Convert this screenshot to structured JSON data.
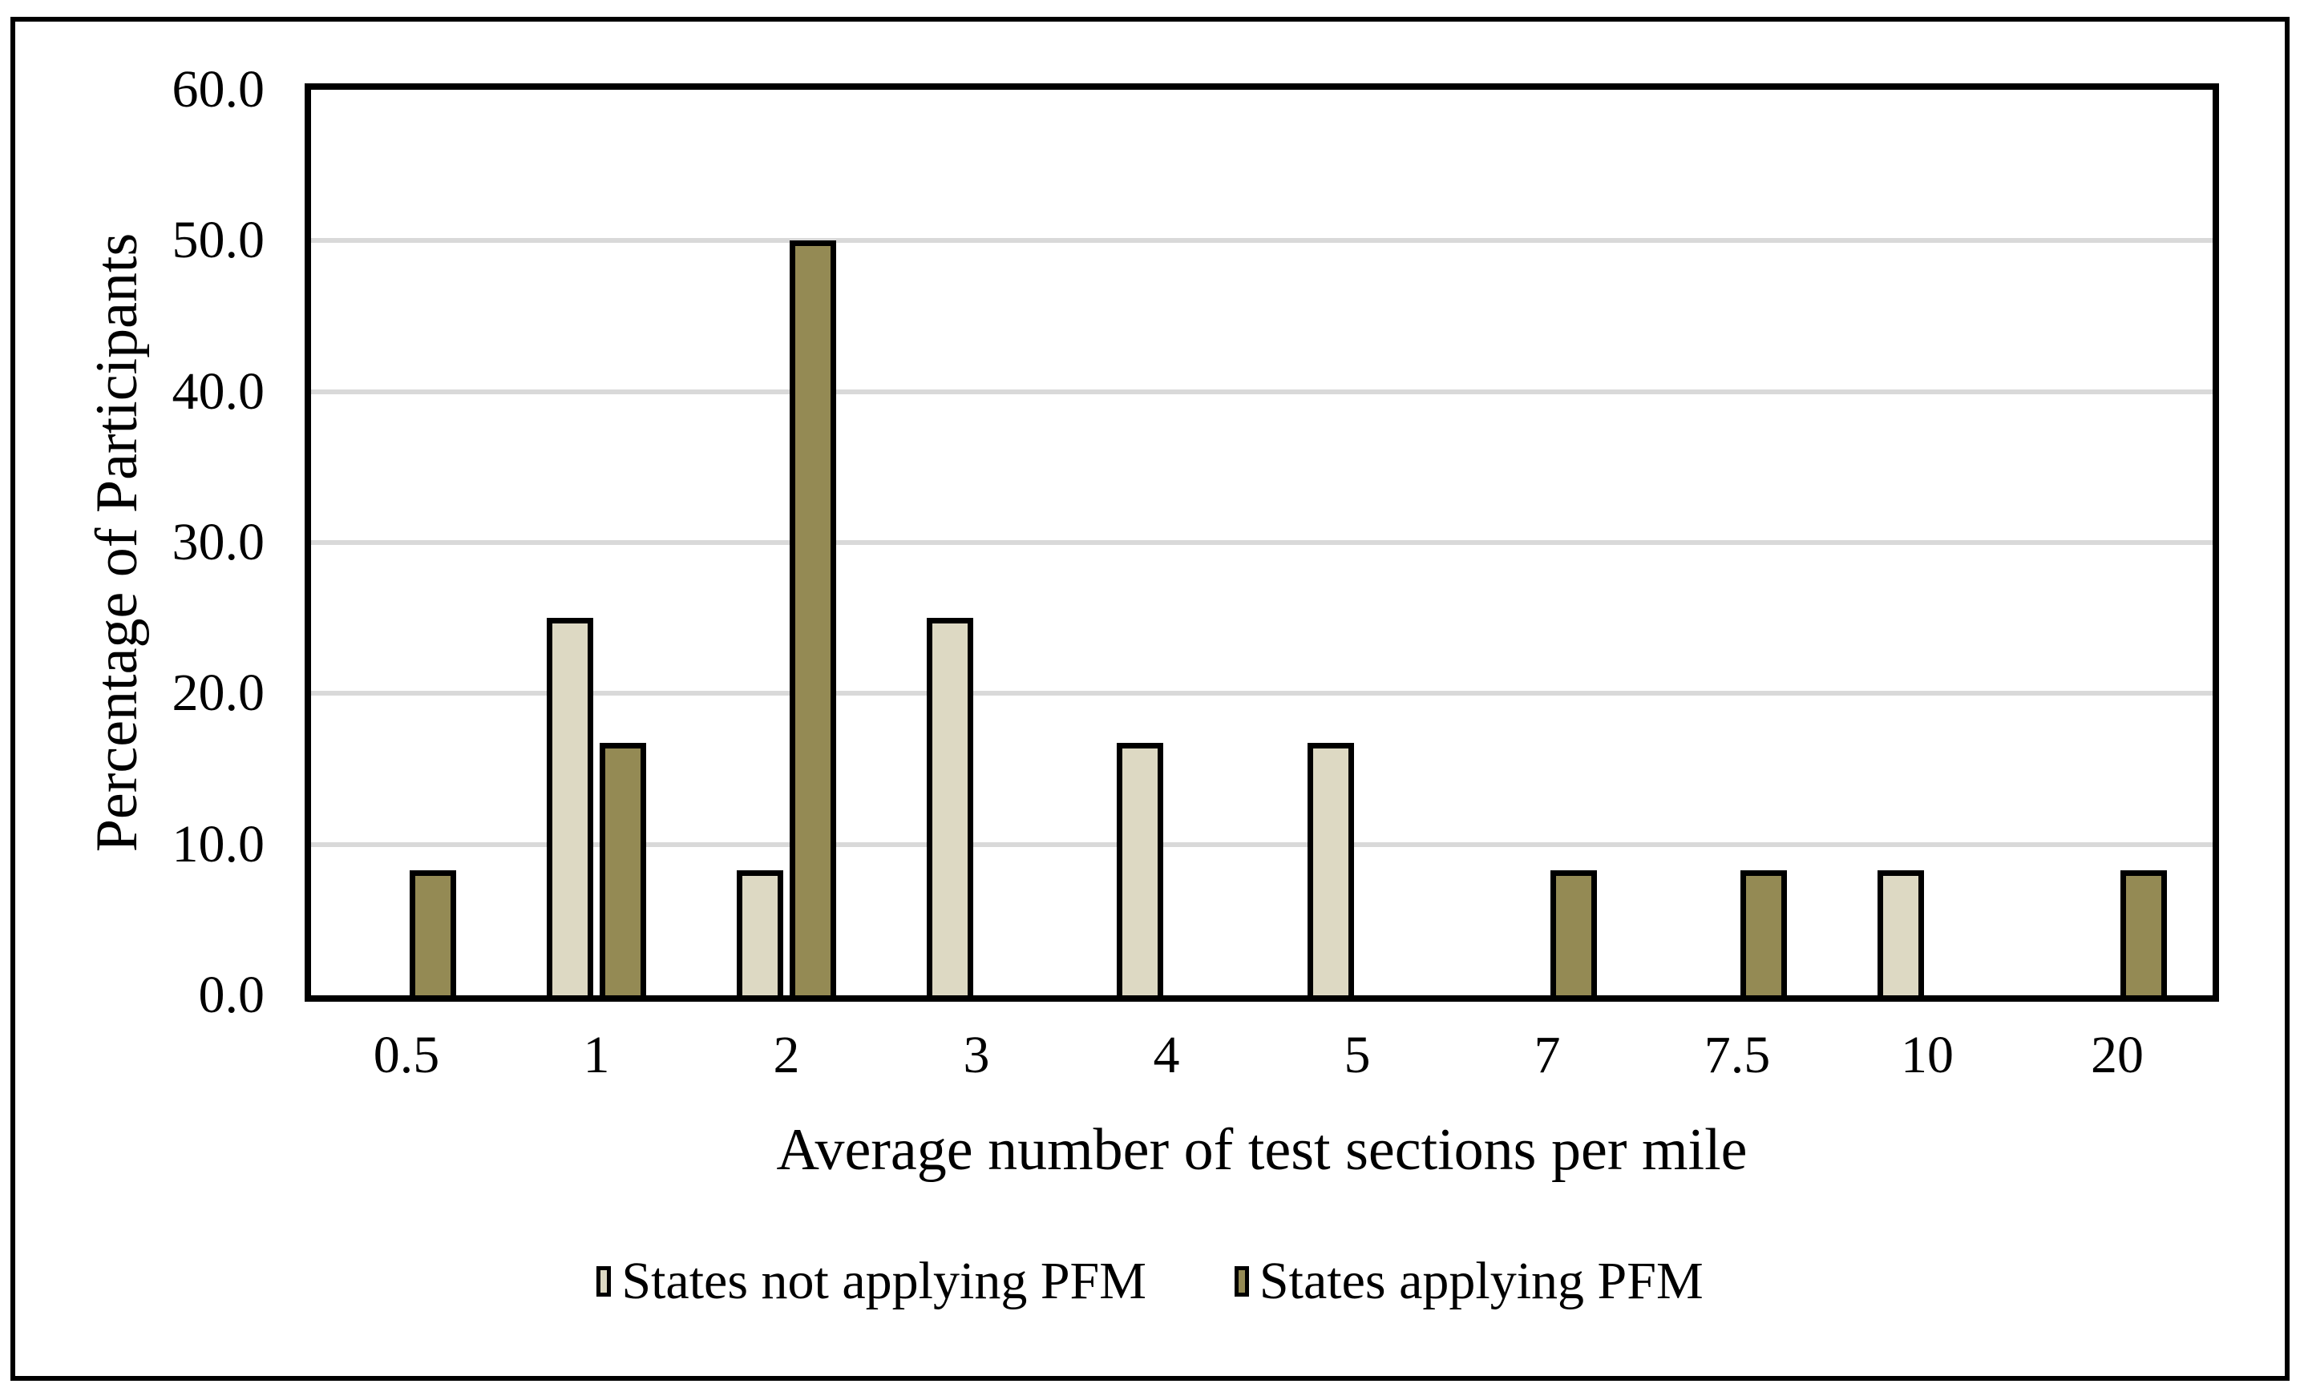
{
  "figure": {
    "background": "#ffffff",
    "frame_border_color": "#000000"
  },
  "chart_data": {
    "type": "bar",
    "title": "",
    "categories": [
      "0.5",
      "1",
      "2",
      "3",
      "4",
      "5",
      "7",
      "7.5",
      "10",
      "20"
    ],
    "series": [
      {
        "name": "States not applying PFM",
        "color": "#DDD9C3",
        "values": [
          0,
          25.0,
          8.3,
          25.0,
          16.7,
          16.7,
          0,
          0,
          8.3,
          0
        ]
      },
      {
        "name": "States applying PFM",
        "color": "#948A54",
        "values": [
          8.3,
          16.7,
          50.0,
          0,
          0,
          0,
          8.3,
          8.3,
          0,
          8.3
        ]
      }
    ],
    "xlabel": "Average number of test sections per mile",
    "ylabel": "Percentage of Participants",
    "ylim": [
      0,
      60
    ],
    "ytick_step": 10,
    "ytick_labels": [
      "0.0",
      "10.0",
      "20.0",
      "30.0",
      "40.0",
      "50.0",
      "60.0"
    ],
    "grid": "horizontal",
    "gridline_color": "#D9D9D9",
    "bar_border_color": "#000000",
    "legend_position": "bottom-center"
  }
}
